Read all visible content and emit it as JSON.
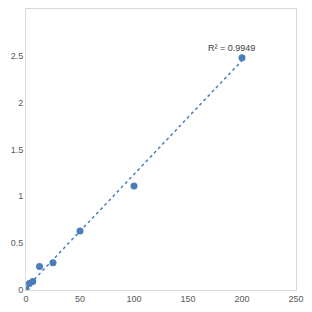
{
  "chart_data": {
    "type": "scatter",
    "annotations": [
      "R² = 0.9949"
    ],
    "series": [
      {
        "type": "scatter",
        "color": "#4a7ebb",
        "marker": "circle",
        "x": [
          0,
          3.125,
          6.25,
          12.5,
          25,
          50,
          100,
          200
        ],
        "values": [
          0.01,
          0.07,
          0.09,
          0.25,
          0.29,
          0.63,
          1.11,
          2.48
        ]
      },
      {
        "type": "line",
        "color": "#4a7ebb",
        "line_style": "dot",
        "x": [
          0,
          200
        ],
        "values": [
          0.02,
          2.45
        ]
      }
    ],
    "xlim": [
      0,
      250
    ],
    "xticks": [
      0,
      50,
      100,
      150,
      200,
      250
    ],
    "ylim": [
      0,
      3
    ],
    "yticks": [
      0,
      0.5,
      1,
      1.5,
      2,
      2.5
    ],
    "grid": false
  }
}
